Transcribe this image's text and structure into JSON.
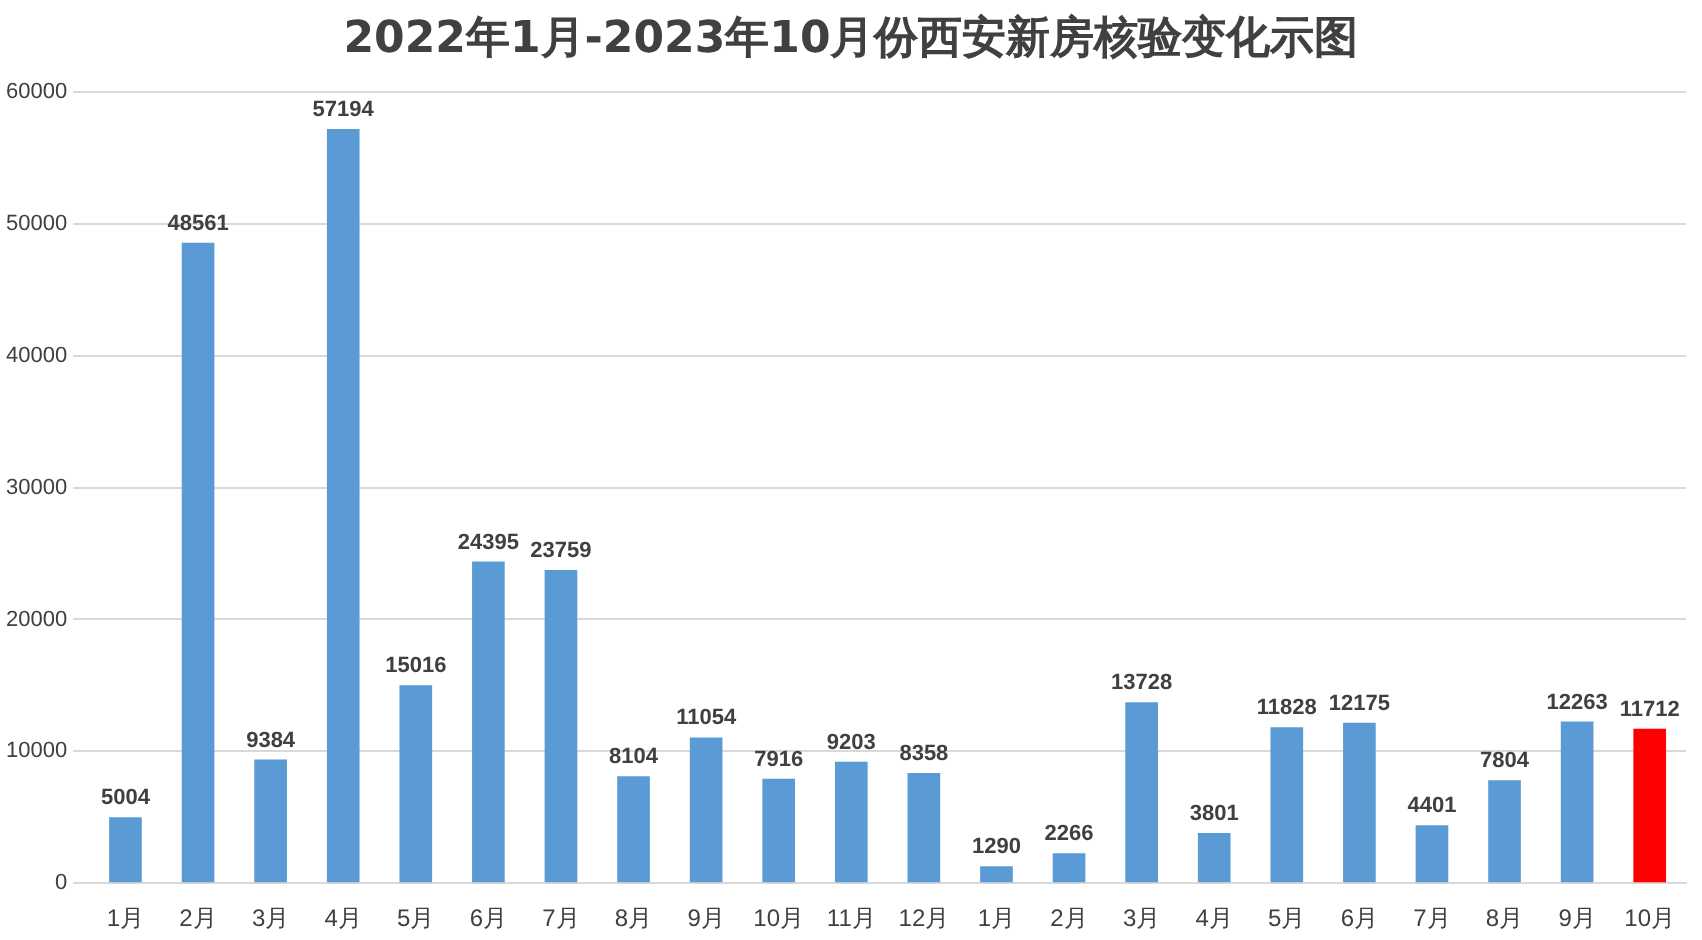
{
  "chart_data": {
    "type": "bar",
    "title": "2022年1月-2023年10月份西安新房核验变化示图",
    "categories": [
      "1月",
      "2月",
      "3月",
      "4月",
      "5月",
      "6月",
      "7月",
      "8月",
      "9月",
      "10月",
      "11月",
      "12月",
      "1月",
      "2月",
      "3月",
      "4月",
      "5月",
      "6月",
      "7月",
      "8月",
      "9月",
      "10月"
    ],
    "values": [
      5004,
      48561,
      9384,
      57194,
      15016,
      24395,
      23759,
      8104,
      11054,
      7916,
      9203,
      8358,
      1290,
      2266,
      13728,
      3801,
      11828,
      12175,
      4401,
      7804,
      12263,
      11712
    ],
    "colors": [
      "#5b9bd5",
      "#5b9bd5",
      "#5b9bd5",
      "#5b9bd5",
      "#5b9bd5",
      "#5b9bd5",
      "#5b9bd5",
      "#5b9bd5",
      "#5b9bd5",
      "#5b9bd5",
      "#5b9bd5",
      "#5b9bd5",
      "#5b9bd5",
      "#5b9bd5",
      "#5b9bd5",
      "#5b9bd5",
      "#5b9bd5",
      "#5b9bd5",
      "#5b9bd5",
      "#5b9bd5",
      "#5b9bd5",
      "#ff0000"
    ],
    "ylim": [
      0,
      60000
    ],
    "yticks": [
      0,
      10000,
      20000,
      30000,
      40000,
      50000,
      60000
    ],
    "grid": "y",
    "data_labels": true,
    "legend": false
  }
}
